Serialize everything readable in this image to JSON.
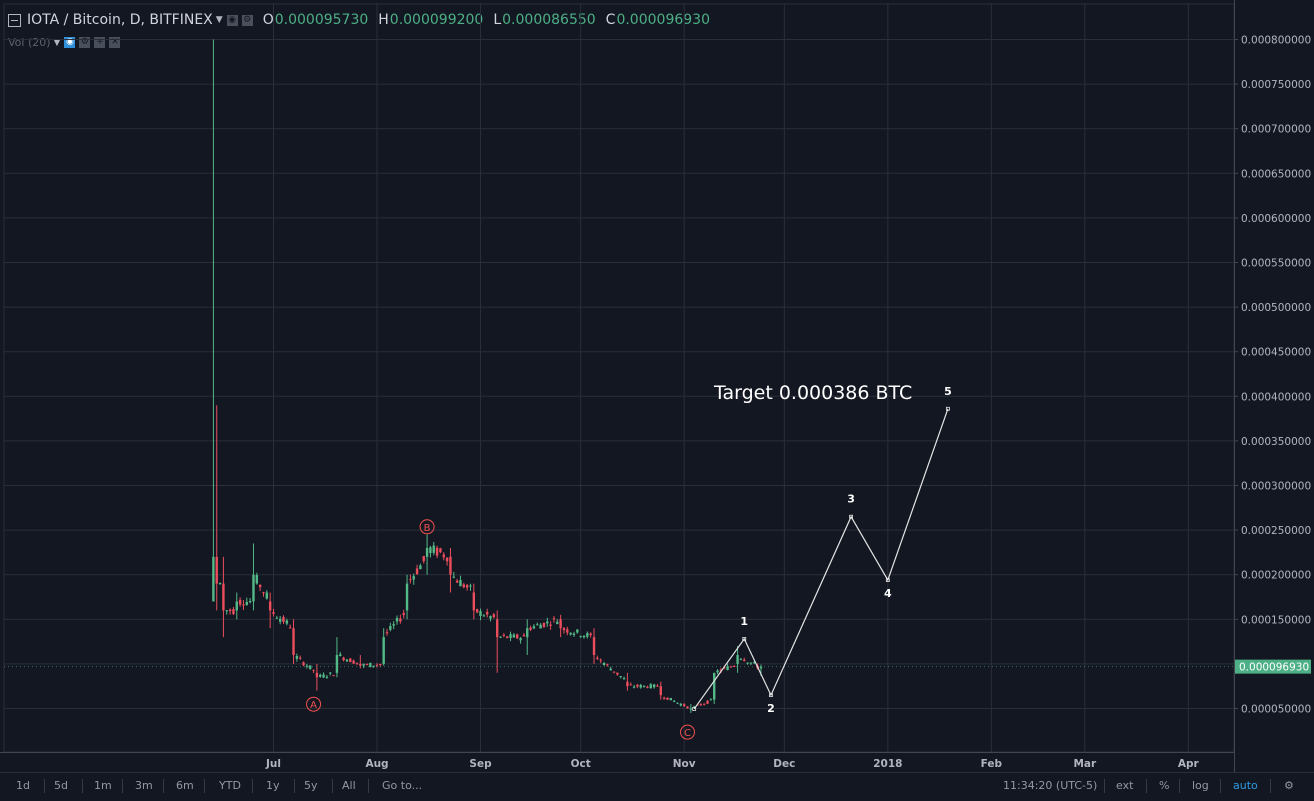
{
  "header": {
    "symbol": "IOTA / Bitcoin, D, BITFINEX",
    "ohlc": [
      {
        "key": "O",
        "value": "0.000095730"
      },
      {
        "key": "H",
        "value": "0.000099200"
      },
      {
        "key": "L",
        "value": "0.000086550"
      },
      {
        "key": "C",
        "value": "0.000096930"
      }
    ],
    "volume_label": "Vol (20)"
  },
  "chart_data": {
    "type": "candlestick",
    "symbol": "IOTA / Bitcoin",
    "interval": "D",
    "exchange": "BITFINEX",
    "x_ticks": [
      "Jul",
      "Aug",
      "Sep",
      "Oct",
      "Nov",
      "Dec",
      "2018",
      "Feb",
      "Mar",
      "Apr"
    ],
    "y_ticks": [
      "0.000050000",
      "0.000100000",
      "0.000150000",
      "0.000200000",
      "0.000250000",
      "0.000300000",
      "0.000350000",
      "0.000400000",
      "0.000450000",
      "0.000500000",
      "0.000550000",
      "0.000600000",
      "0.000650000",
      "0.000700000",
      "0.000750000",
      "0.000800000"
    ],
    "ylim": [
      7e-06,
      0.000835
    ],
    "y_scale": "linear",
    "grid": true,
    "last_price": "0.000096930",
    "candles_approx": [
      {
        "date": "2017-06-13",
        "o": 0.00017,
        "h": 0.0008,
        "l": 0.00017,
        "c": 0.00022
      },
      {
        "date": "2017-06-14",
        "o": 0.00022,
        "h": 0.00039,
        "l": 0.00016,
        "c": 0.00019
      },
      {
        "date": "2017-06-16",
        "o": 0.00019,
        "h": 0.00022,
        "l": 0.00013,
        "c": 0.00016
      },
      {
        "date": "2017-06-20",
        "o": 0.00016,
        "h": 0.00018,
        "l": 0.00015,
        "c": 0.00017
      },
      {
        "date": "2017-06-25",
        "o": 0.00017,
        "h": 0.000235,
        "l": 0.00016,
        "c": 0.0002
      },
      {
        "date": "2017-06-30",
        "o": 0.00017,
        "h": 0.00018,
        "l": 0.00014,
        "c": 0.00016
      },
      {
        "date": "2017-07-07",
        "o": 0.00014,
        "h": 0.00015,
        "l": 0.0001,
        "c": 0.00011
      },
      {
        "date": "2017-07-14",
        "o": 9e-05,
        "h": 0.0001,
        "l": 7e-05,
        "c": 8.5e-05
      },
      {
        "date": "2017-07-20",
        "o": 9e-05,
        "h": 0.00013,
        "l": 8.5e-05,
        "c": 0.00011
      },
      {
        "date": "2017-07-27",
        "o": 0.0001,
        "h": 0.00011,
        "l": 9.5e-05,
        "c": 9.8e-05
      },
      {
        "date": "2017-08-03",
        "o": 0.0001,
        "h": 0.00014,
        "l": 9.8e-05,
        "c": 0.00013
      },
      {
        "date": "2017-08-10",
        "o": 0.00016,
        "h": 0.0002,
        "l": 0.00015,
        "c": 0.00019
      },
      {
        "date": "2017-08-16",
        "o": 0.00022,
        "h": 0.000245,
        "l": 0.0002,
        "c": 0.00023
      },
      {
        "date": "2017-08-23",
        "o": 0.00022,
        "h": 0.00023,
        "l": 0.00018,
        "c": 0.0002
      },
      {
        "date": "2017-08-30",
        "o": 0.00018,
        "h": 0.00019,
        "l": 0.00015,
        "c": 0.00016
      },
      {
        "date": "2017-09-06",
        "o": 0.00015,
        "h": 0.00016,
        "l": 9e-05,
        "c": 0.00013
      },
      {
        "date": "2017-09-15",
        "o": 0.00013,
        "h": 0.00015,
        "l": 0.00011,
        "c": 0.00014
      },
      {
        "date": "2017-09-25",
        "o": 0.00015,
        "h": 0.000155,
        "l": 0.00013,
        "c": 0.00014
      },
      {
        "date": "2017-10-05",
        "o": 0.00013,
        "h": 0.00014,
        "l": 0.0001,
        "c": 0.00011
      },
      {
        "date": "2017-10-15",
        "o": 8e-05,
        "h": 9e-05,
        "l": 7e-05,
        "c": 7.5e-05
      },
      {
        "date": "2017-10-25",
        "o": 7.5e-05,
        "h": 8e-05,
        "l": 6e-05,
        "c": 6.5e-05
      },
      {
        "date": "2017-11-03",
        "o": 5e-05,
        "h": 5.5e-05,
        "l": 4.5e-05,
        "c": 5e-05
      },
      {
        "date": "2017-11-10",
        "o": 6e-05,
        "h": 9e-05,
        "l": 5.5e-05,
        "c": 9e-05
      },
      {
        "date": "2017-11-17",
        "o": 0.0001,
        "h": 0.00012,
        "l": 9e-05,
        "c": 0.00011
      },
      {
        "date": "2017-11-24",
        "o": 9.5e-05,
        "h": 9.92e-05,
        "l": 8.65e-05,
        "c": 9.69e-05
      }
    ],
    "annotations": {
      "abc_labels": [
        "A",
        "B",
        "C"
      ],
      "wave_labels": [
        "1",
        "2",
        "3",
        "4",
        "5"
      ],
      "wave_points": [
        {
          "label": "1",
          "date": "2017-11-19",
          "value": 0.000128
        },
        {
          "label": "2",
          "date": "2017-11-27",
          "value": 6.5e-05
        },
        {
          "label": "3",
          "date": "2017-12-21",
          "value": 0.000265
        },
        {
          "label": "4",
          "date": "2018-01-01",
          "value": 0.000194
        },
        {
          "label": "5",
          "date": "2018-01-19",
          "value": 0.000386
        }
      ],
      "target_text": "Target 0.000386 BTC"
    }
  },
  "bottom_bar": {
    "ranges": [
      "1d",
      "5d",
      "1m",
      "3m",
      "6m",
      "YTD",
      "1y",
      "5y",
      "All"
    ],
    "goto": "Go to...",
    "clock": "11:34:20 (UTC-5)",
    "ext": "ext",
    "percent": "%",
    "log": "log",
    "auto": "auto",
    "settings_icon": "gear-icon"
  },
  "colors": {
    "background": "#131722",
    "grid": "#2a2e39",
    "up": "#53b987",
    "down": "#eb4d5c",
    "annotation": "#e5e5e5",
    "abc_marker": "#ef5350",
    "last_price_badge": "#4caf85"
  }
}
